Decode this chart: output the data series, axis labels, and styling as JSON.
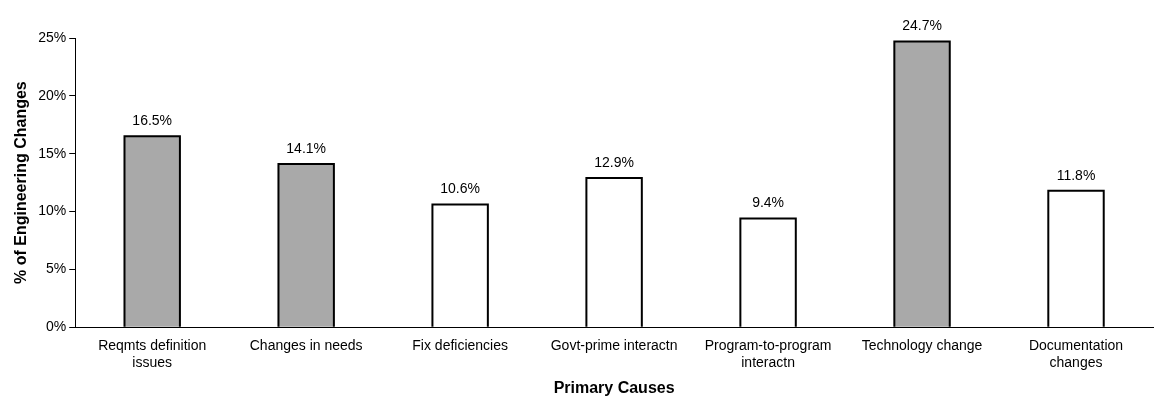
{
  "chart_data": {
    "type": "bar",
    "xlabel": "Primary Causes",
    "ylabel": "% of Engineering Changes",
    "categories": [
      "Reqmts definition issues",
      "Changes in needs",
      "Fix deficiencies",
      "Govt-prime interactn",
      "Program-to-program interactn",
      "Technology change",
      "Documentation changes"
    ],
    "values": [
      16.5,
      14.1,
      10.6,
      12.9,
      9.4,
      24.7,
      11.8
    ],
    "colors": [
      "#a9a9a9",
      "#a9a9a9",
      "#ffffff",
      "#ffffff",
      "#ffffff",
      "#a9a9a9",
      "#ffffff"
    ],
    "value_labels": [
      "16.5%",
      "14.1%",
      "10.6%",
      "12.9%",
      "9.4%",
      "24.7%",
      "11.8%"
    ],
    "ylim": [
      0,
      25
    ],
    "yticks": [
      {
        "value": 0,
        "label": "0%"
      },
      {
        "value": 5,
        "label": "5%"
      },
      {
        "value": 10,
        "label": "10%"
      },
      {
        "value": 15,
        "label": "15%"
      },
      {
        "value": 20,
        "label": "20%"
      },
      {
        "value": 25,
        "label": "25%"
      }
    ],
    "grid": false,
    "legend": false
  }
}
